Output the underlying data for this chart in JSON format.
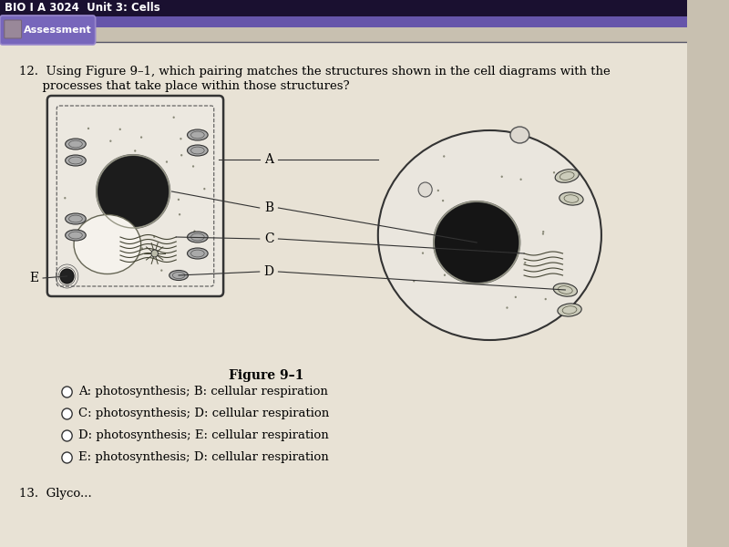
{
  "title_bar_text": "BIO I A 3024  Unit 3: Cells",
  "tab_text": "Assessment",
  "question_text_1": "12.  Using Figure 9–1, which pairing matches the structures shown in the cell diagrams with the",
  "question_text_2": "      processes that take place within those structures?",
  "figure_label": "Figure 9–1",
  "options": [
    "A: photosynthesis; B: cellular respiration",
    "C: photosynthesis; D: cellular respiration",
    "D: photosynthesis; E: cellular respiration",
    "E: photosynthesis; D: cellular respiration"
  ],
  "bg_color": "#c8c0b0",
  "header_bg": "#1a1030",
  "header_text_color": "#ffffff",
  "purple_band": "#6655aa",
  "tab_color": "#7766bb",
  "content_bg": "#e8e2d5",
  "cell_line_color": "#444444",
  "cell_fill": "#f0ece4",
  "label_color": "#111111",
  "option_text_color": "#111111"
}
